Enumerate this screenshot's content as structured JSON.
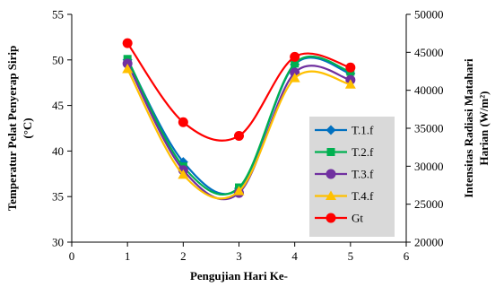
{
  "chart_data": {
    "type": "line",
    "xlabel": "Pengujian Hari Ke-",
    "ylabel_left": [
      "Temperatur Pelat Penyerap Sirip",
      "(°C)"
    ],
    "ylabel_right": [
      "Intensitas Radiasi Matahari",
      "Harian (W/m²)"
    ],
    "xlim": [
      0,
      6
    ],
    "ylim_left": [
      30,
      55
    ],
    "ylim_right": [
      20000,
      50000
    ],
    "xticks": [
      "0",
      "1",
      "2",
      "3",
      "4",
      "5",
      "6"
    ],
    "yticks_left": [
      "30",
      "35",
      "40",
      "45",
      "50",
      "55"
    ],
    "yticks_right": [
      "20000",
      "25000",
      "30000",
      "35000",
      "40000",
      "45000",
      "50000"
    ],
    "grid": false,
    "legend_position": "right",
    "x": [
      1,
      2,
      3,
      4,
      5
    ],
    "series": [
      {
        "name": "T.1.f",
        "axis": "left",
        "values": [
          50.0,
          38.8,
          35.9,
          49.5,
          48.5
        ],
        "color": "#0070C0",
        "marker": "diamond"
      },
      {
        "name": "T.2.f",
        "axis": "left",
        "values": [
          50.1,
          38.3,
          36.0,
          49.6,
          48.7
        ],
        "color": "#00B050",
        "marker": "square"
      },
      {
        "name": "T.3.f",
        "axis": "left",
        "values": [
          49.6,
          37.9,
          35.4,
          48.6,
          47.8
        ],
        "color": "#7030A0",
        "marker": "circle"
      },
      {
        "name": "T.4.f",
        "axis": "left",
        "values": [
          49.0,
          37.4,
          35.6,
          48.0,
          47.3
        ],
        "color": "#FFC000",
        "marker": "triangle"
      },
      {
        "name": "Gt",
        "axis": "right",
        "values": [
          46200,
          35800,
          34000,
          44400,
          43000
        ],
        "color": "#FF0000",
        "marker": "circle"
      }
    ]
  }
}
